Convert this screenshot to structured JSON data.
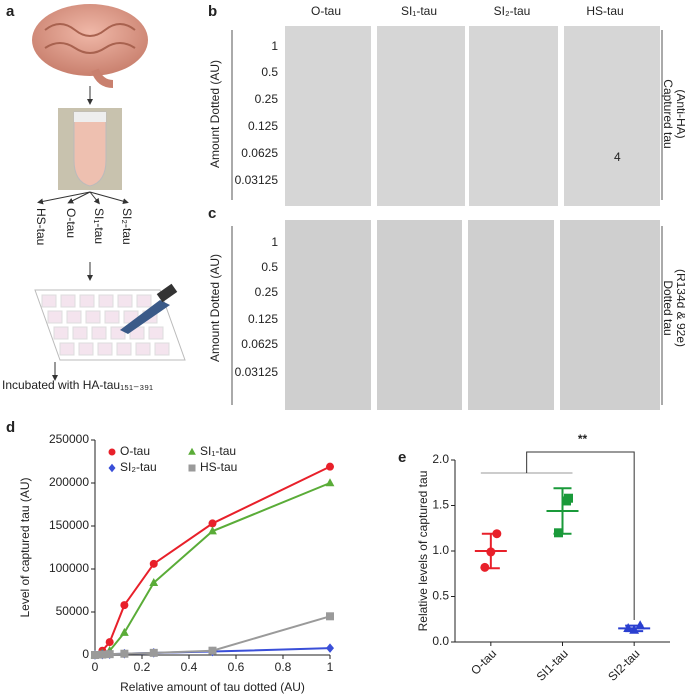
{
  "panels": {
    "a": {
      "label": "a",
      "tube_labels": [
        "HS-tau",
        "O-tau",
        "SI₁-tau",
        "SI₂-tau"
      ],
      "caption": "Incubated with HA-tau₁₅₁₋₃₉₁"
    },
    "b": {
      "label": "b",
      "columns": [
        "O-tau",
        "SI₁-tau",
        "SI₂-tau",
        "HS-tau"
      ],
      "rows": [
        "1",
        "0.5",
        "0.25",
        "0.125",
        "0.0625",
        "0.03125"
      ],
      "y_label": "Amount Dotted (AU)",
      "side_label": [
        "Captured tau",
        "(Anti-HA)"
      ],
      "annotation": "4"
    },
    "c": {
      "label": "c",
      "rows": [
        "1",
        "0.5",
        "0.25",
        "0.125",
        "0.0625",
        "0.03125"
      ],
      "y_label": "Amount Dotted (AU)",
      "side_label": [
        "Dotted tau",
        "(R134d & 92e)"
      ]
    }
  },
  "chart_data": [
    {
      "type": "line",
      "label": "d",
      "x": [
        0,
        0.03125,
        0.0625,
        0.125,
        0.25,
        0.5,
        1
      ],
      "series": [
        {
          "name": "O-tau",
          "color": "#e8202a",
          "marker": "circle",
          "values": [
            0,
            5000,
            15000,
            58000,
            106000,
            153000,
            219000
          ]
        },
        {
          "name": "SI₁-tau",
          "color": "#5aac38",
          "marker": "triangle",
          "values": [
            0,
            2000,
            5000,
            26000,
            84000,
            144000,
            200000
          ]
        },
        {
          "name": "SI₂-tau",
          "color": "#3a4fd8",
          "marker": "diamond",
          "values": [
            0,
            500,
            1000,
            1500,
            2500,
            4000,
            8000
          ]
        },
        {
          "name": "HS-tau",
          "color": "#9a9a9a",
          "marker": "square",
          "values": [
            0,
            500,
            1000,
            1500,
            2500,
            5000,
            45000
          ]
        }
      ],
      "xlim": [
        0,
        1
      ],
      "xticks": [
        0,
        0.2,
        0.4,
        0.6,
        0.8,
        1
      ],
      "ylim": [
        0,
        250000
      ],
      "yticks": [
        0,
        50000,
        100000,
        150000,
        200000,
        250000
      ],
      "x_label": "Relative amount of tau dotted (AU)",
      "y_label": "Level of captured tau (AU)",
      "legend": "upper-left"
    },
    {
      "type": "dot",
      "label": "e",
      "categories": [
        "O-tau",
        "SI1-tau",
        "SI2-tau"
      ],
      "colors": [
        "#e8202a",
        "#1a9a3a",
        "#2a3fd0"
      ],
      "markers": [
        "circle",
        "square",
        "triangle"
      ],
      "points": [
        [
          1.19,
          0.82,
          0.99
        ],
        [
          1.58,
          1.55,
          1.2
        ],
        [
          0.18,
          0.15,
          0.13
        ]
      ],
      "means": [
        1.0,
        1.44,
        0.15
      ],
      "errors": [
        0.19,
        0.25,
        0.03
      ],
      "ylim": [
        0,
        2
      ],
      "yticks": [
        {
          "value": 0,
          "label": "0.0"
        },
        {
          "value": 0.5,
          "label": "0.5"
        },
        {
          "value": 1,
          "label": "1.0"
        },
        {
          "value": 1.5,
          "label": "1.5"
        },
        {
          "value": 2,
          "label": "2.0"
        }
      ],
      "y_label": "Relative levels of captured tau",
      "annotation": "**"
    }
  ]
}
